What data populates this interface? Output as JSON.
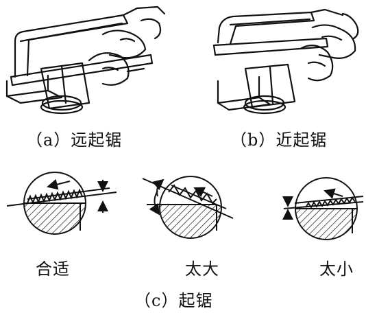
{
  "captions": {
    "a": "（a）远起锯",
    "b": "（b）近起锯",
    "ok": "合适",
    "too_big": "太大",
    "too_small": "太小",
    "c": "（c）起锯"
  },
  "colors": {
    "ink": "#111111",
    "paper": "#ffffff"
  }
}
